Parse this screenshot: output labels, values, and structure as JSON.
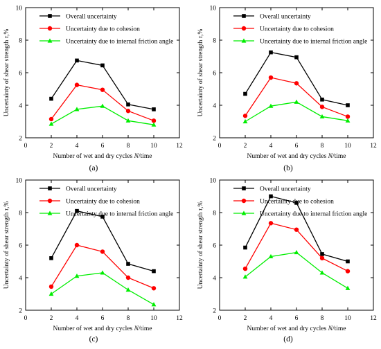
{
  "figure": {
    "xlabel_prefix": "Number of wet and dry cycles ",
    "xlabel_var": "N",
    "xlabel_suffix": "/time",
    "ylabel_prefix": "Uncertainty of shear strength ",
    "ylabel_var": "τ",
    "ylabel_suffix": ",%"
  },
  "series_styles": [
    {
      "name": "Overall uncertainty",
      "color": "#000000",
      "marker": "square"
    },
    {
      "name": "Uncertainty due to cohesion",
      "color": "#ff0000",
      "marker": "circle"
    },
    {
      "name": "Uncertainty due to internal friction angle",
      "color": "#00ee00",
      "marker": "triangle"
    }
  ],
  "chart_data": [
    {
      "type": "line",
      "panel_label": "(a)",
      "x": [
        2,
        4,
        6,
        8,
        10
      ],
      "xlim": [
        0,
        12
      ],
      "xticks": [
        0,
        2,
        4,
        6,
        8,
        10,
        12
      ],
      "ylim": [
        2,
        10
      ],
      "yticks": [
        2,
        4,
        6,
        8,
        10
      ],
      "xlabel": "Number of wet and dry cycles N/time",
      "ylabel": "Uncertainty of shear strength τ,%",
      "legend_position": "top-left",
      "series": [
        {
          "name": "Overall uncertainty",
          "values": [
            4.4,
            6.75,
            6.45,
            4.05,
            3.75
          ]
        },
        {
          "name": "Uncertainty due to cohesion",
          "values": [
            3.15,
            5.25,
            4.95,
            3.65,
            3.05
          ]
        },
        {
          "name": "Uncertainty due to internal friction angle",
          "values": [
            2.85,
            3.75,
            3.95,
            3.05,
            2.8
          ]
        }
      ]
    },
    {
      "type": "line",
      "panel_label": "(b)",
      "x": [
        2,
        4,
        6,
        8,
        10
      ],
      "xlim": [
        0,
        12
      ],
      "xticks": [
        0,
        2,
        4,
        6,
        8,
        10,
        12
      ],
      "ylim": [
        2,
        10
      ],
      "yticks": [
        2,
        4,
        6,
        8,
        10
      ],
      "xlabel": "Number of wet and dry cycles N/time",
      "ylabel": "Uncertainty of shear strength τ,%",
      "legend_position": "top-left",
      "series": [
        {
          "name": "Overall uncertainty",
          "values": [
            4.7,
            7.25,
            6.95,
            4.35,
            4.0
          ]
        },
        {
          "name": "Uncertainty due to cohesion",
          "values": [
            3.35,
            5.7,
            5.35,
            3.9,
            3.3
          ]
        },
        {
          "name": "Uncertainty due to internal friction angle",
          "values": [
            3.0,
            3.95,
            4.2,
            3.3,
            3.05
          ]
        }
      ]
    },
    {
      "type": "line",
      "panel_label": "(c)",
      "x": [
        2,
        4,
        6,
        8,
        10
      ],
      "xlim": [
        0,
        12
      ],
      "xticks": [
        0,
        2,
        4,
        6,
        8,
        10,
        12
      ],
      "ylim": [
        2,
        10
      ],
      "yticks": [
        2,
        4,
        6,
        8,
        10
      ],
      "xlabel": "Number of wet and dry cycles N/time",
      "ylabel": "Uncertainty of shear strength τ,%",
      "legend_position": "top-left",
      "series": [
        {
          "name": "Overall uncertainty",
          "values": [
            5.2,
            8.1,
            7.75,
            4.85,
            4.4
          ]
        },
        {
          "name": "Uncertainty due to cohesion",
          "values": [
            3.45,
            6.0,
            5.6,
            4.0,
            3.35
          ]
        },
        {
          "name": "Uncertainty due to internal friction angle",
          "values": [
            3.0,
            4.1,
            4.3,
            3.25,
            2.35
          ]
        }
      ]
    },
    {
      "type": "line",
      "panel_label": "(d)",
      "x": [
        2,
        4,
        6,
        8,
        10
      ],
      "xlim": [
        0,
        12
      ],
      "xticks": [
        0,
        2,
        4,
        6,
        8,
        10,
        12
      ],
      "ylim": [
        2,
        10
      ],
      "yticks": [
        2,
        4,
        6,
        8,
        10
      ],
      "xlabel": "Number of wet and dry cycles N/time",
      "ylabel": "Uncertainty of shear strength τ,%",
      "legend_position": "top-left",
      "series": [
        {
          "name": "Overall uncertainty",
          "values": [
            5.85,
            9.0,
            8.6,
            5.45,
            5.0
          ]
        },
        {
          "name": "Uncertainty due to cohesion",
          "values": [
            4.55,
            7.35,
            6.95,
            5.2,
            4.4
          ]
        },
        {
          "name": "Uncertainty due to internal friction angle",
          "values": [
            4.05,
            5.3,
            5.55,
            4.3,
            3.35
          ]
        }
      ]
    }
  ]
}
